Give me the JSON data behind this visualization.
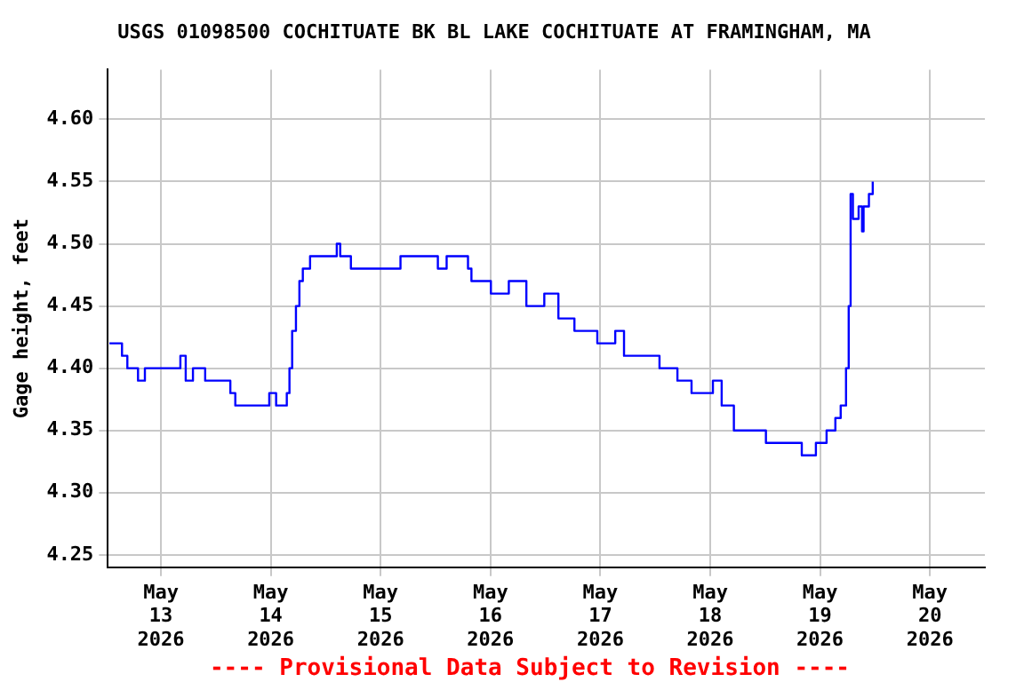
{
  "chart_data": {
    "type": "step",
    "title": "USGS 01098500 COCHITUATE BK BL LAKE COCHITUATE AT FRAMINGHAM, MA",
    "ylabel": "Gage height, feet",
    "annotations": [
      "---- Provisional Data Subject to Revision ----"
    ],
    "series": [
      {
        "color": "#0000ff",
        "x": [
          "2026-05-12T12:45",
          "2026-05-12T15:30",
          "2026-05-12T16:40",
          "2026-05-12T19:00",
          "2026-05-12T20:30",
          "2026-05-13T04:15",
          "2026-05-13T05:25",
          "2026-05-13T07:00",
          "2026-05-13T09:40",
          "2026-05-13T15:10",
          "2026-05-13T16:15",
          "2026-05-13T23:40",
          "2026-05-14T01:10",
          "2026-05-14T03:30",
          "2026-05-14T04:05",
          "2026-05-14T04:40",
          "2026-05-14T05:30",
          "2026-05-14T06:15",
          "2026-05-14T07:00",
          "2026-05-14T08:35",
          "2026-05-14T14:25",
          "2026-05-14T15:10",
          "2026-05-14T17:30",
          "2026-05-15T04:20",
          "2026-05-15T12:30",
          "2026-05-15T14:25",
          "2026-05-15T19:05",
          "2026-05-15T19:50",
          "2026-05-16T00:05",
          "2026-05-16T04:00",
          "2026-05-16T07:50",
          "2026-05-16T11:45",
          "2026-05-16T14:50",
          "2026-05-16T18:20",
          "2026-05-16T23:20",
          "2026-05-17T03:15",
          "2026-05-17T05:10",
          "2026-05-17T12:55",
          "2026-05-17T16:50",
          "2026-05-17T19:55",
          "2026-05-18T00:35",
          "2026-05-18T02:30",
          "2026-05-18T05:10",
          "2026-05-18T12:10",
          "2026-05-18T20:00",
          "2026-05-18T23:05",
          "2026-05-19T01:25",
          "2026-05-19T03:20",
          "2026-05-19T04:30",
          "2026-05-19T05:40",
          "2026-05-19T06:15",
          "2026-05-19T06:40",
          "2026-05-19T07:10",
          "2026-05-19T08:25",
          "2026-05-19T09:10",
          "2026-05-19T09:30",
          "2026-05-19T10:40",
          "2026-05-19T11:30"
        ],
        "values": [
          4.42,
          4.41,
          4.4,
          4.39,
          4.4,
          4.41,
          4.39,
          4.4,
          4.39,
          4.38,
          4.37,
          4.38,
          4.37,
          4.38,
          4.4,
          4.43,
          4.45,
          4.47,
          4.48,
          4.49,
          4.5,
          4.49,
          4.48,
          4.49,
          4.48,
          4.49,
          4.48,
          4.47,
          4.46,
          4.47,
          4.45,
          4.46,
          4.44,
          4.43,
          4.42,
          4.43,
          4.41,
          4.4,
          4.39,
          4.38,
          4.39,
          4.37,
          4.35,
          4.34,
          4.33,
          4.34,
          4.35,
          4.36,
          4.37,
          4.4,
          4.45,
          4.54,
          4.52,
          4.53,
          4.51,
          4.53,
          4.54,
          4.55
        ]
      }
    ],
    "xlim": [
      "2026-05-12T12:25",
      "2026-05-20T12:00"
    ],
    "xticks": [
      {
        "value": "2026-05-13",
        "label": "May 13 2026"
      },
      {
        "value": "2026-05-14",
        "label": "May 14 2026"
      },
      {
        "value": "2026-05-15",
        "label": "May 15 2026"
      },
      {
        "value": "2026-05-16",
        "label": "May 16 2026"
      },
      {
        "value": "2026-05-17",
        "label": "May 17 2026"
      },
      {
        "value": "2026-05-18",
        "label": "May 18 2026"
      },
      {
        "value": "2026-05-19",
        "label": "May 19 2026"
      },
      {
        "value": "2026-05-20",
        "label": "May 20 2026"
      }
    ],
    "ylim": [
      4.24,
      4.64
    ],
    "yticks": [
      {
        "value": 4.25,
        "label": "4.25"
      },
      {
        "value": 4.3,
        "label": "4.30"
      },
      {
        "value": 4.35,
        "label": "4.35"
      },
      {
        "value": 4.4,
        "label": "4.40"
      },
      {
        "value": 4.45,
        "label": "4.45"
      },
      {
        "value": 4.5,
        "label": "4.50"
      },
      {
        "value": 4.55,
        "label": "4.55"
      },
      {
        "value": 4.6,
        "label": "4.60"
      }
    ],
    "grid": true,
    "legend": false,
    "marker": "none",
    "line_style": "solid"
  }
}
